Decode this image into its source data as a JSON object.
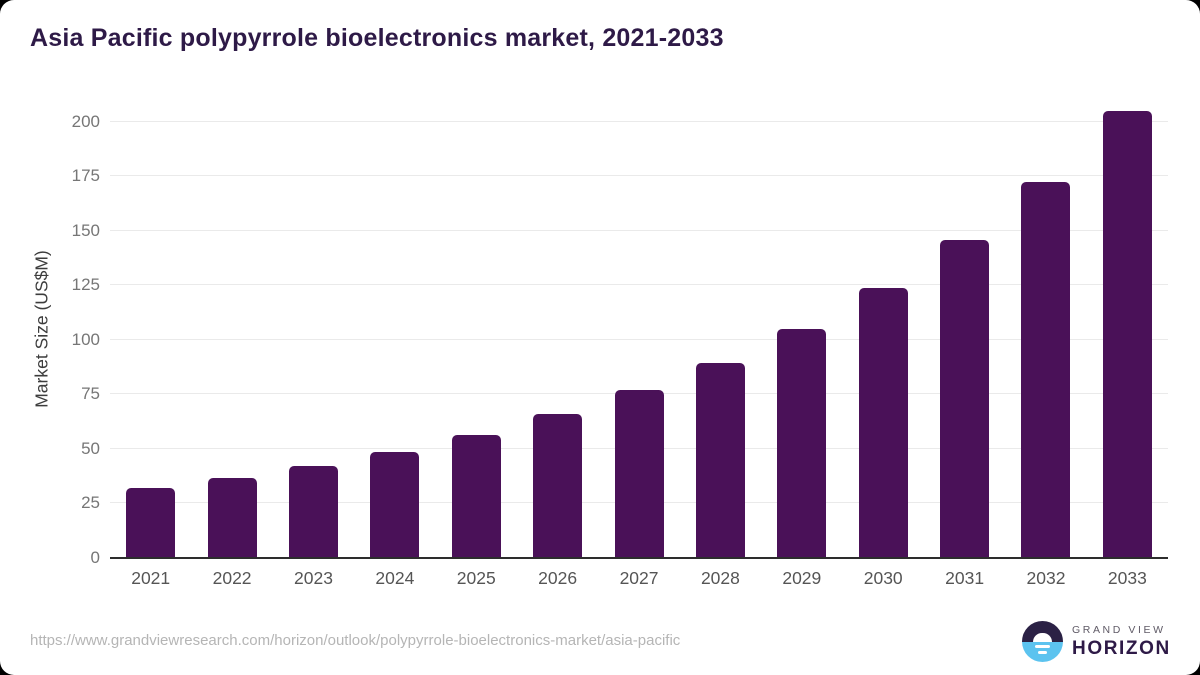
{
  "header": {
    "title": "Asia Pacific polypyrrole bioelectronics market, 2021-2033",
    "title_color": "#2e1a47"
  },
  "chart_data": {
    "type": "bar",
    "title": "Asia Pacific polypyrrole bioelectronics market, 2021-2033",
    "categories": [
      "2021",
      "2022",
      "2023",
      "2024",
      "2025",
      "2026",
      "2027",
      "2028",
      "2029",
      "2030",
      "2031",
      "2032",
      "2033"
    ],
    "values": [
      32,
      36.5,
      42,
      48.5,
      56.5,
      66,
      77,
      89.5,
      105,
      124,
      146,
      172.5,
      205
    ],
    "xlabel": "",
    "ylabel": "Market Size (US$M)",
    "ylim": [
      0,
      210
    ],
    "yticks": [
      0,
      25,
      50,
      75,
      100,
      125,
      150,
      175,
      200
    ],
    "grid": true,
    "legend": false,
    "bar_color": "#4a1158",
    "gridline_color": "#eaeaea",
    "axis_line_color": "#2d2d2d",
    "ytick_label_color": "#767676",
    "xtick_label_color": "#555555"
  },
  "footer": {
    "source_url": "https://www.grandviewresearch.com/horizon/outlook/polypyrrole-bioelectronics-market/asia-pacific",
    "source_url_color": "#b5b5b5",
    "logo": {
      "line1": "GRAND VIEW",
      "line2": "HORIZON",
      "line1_color": "#5f5a66",
      "line2_color": "#2e1a47",
      "icon_top_color": "#2b2145",
      "icon_bottom_color": "#5cc3ef"
    }
  }
}
